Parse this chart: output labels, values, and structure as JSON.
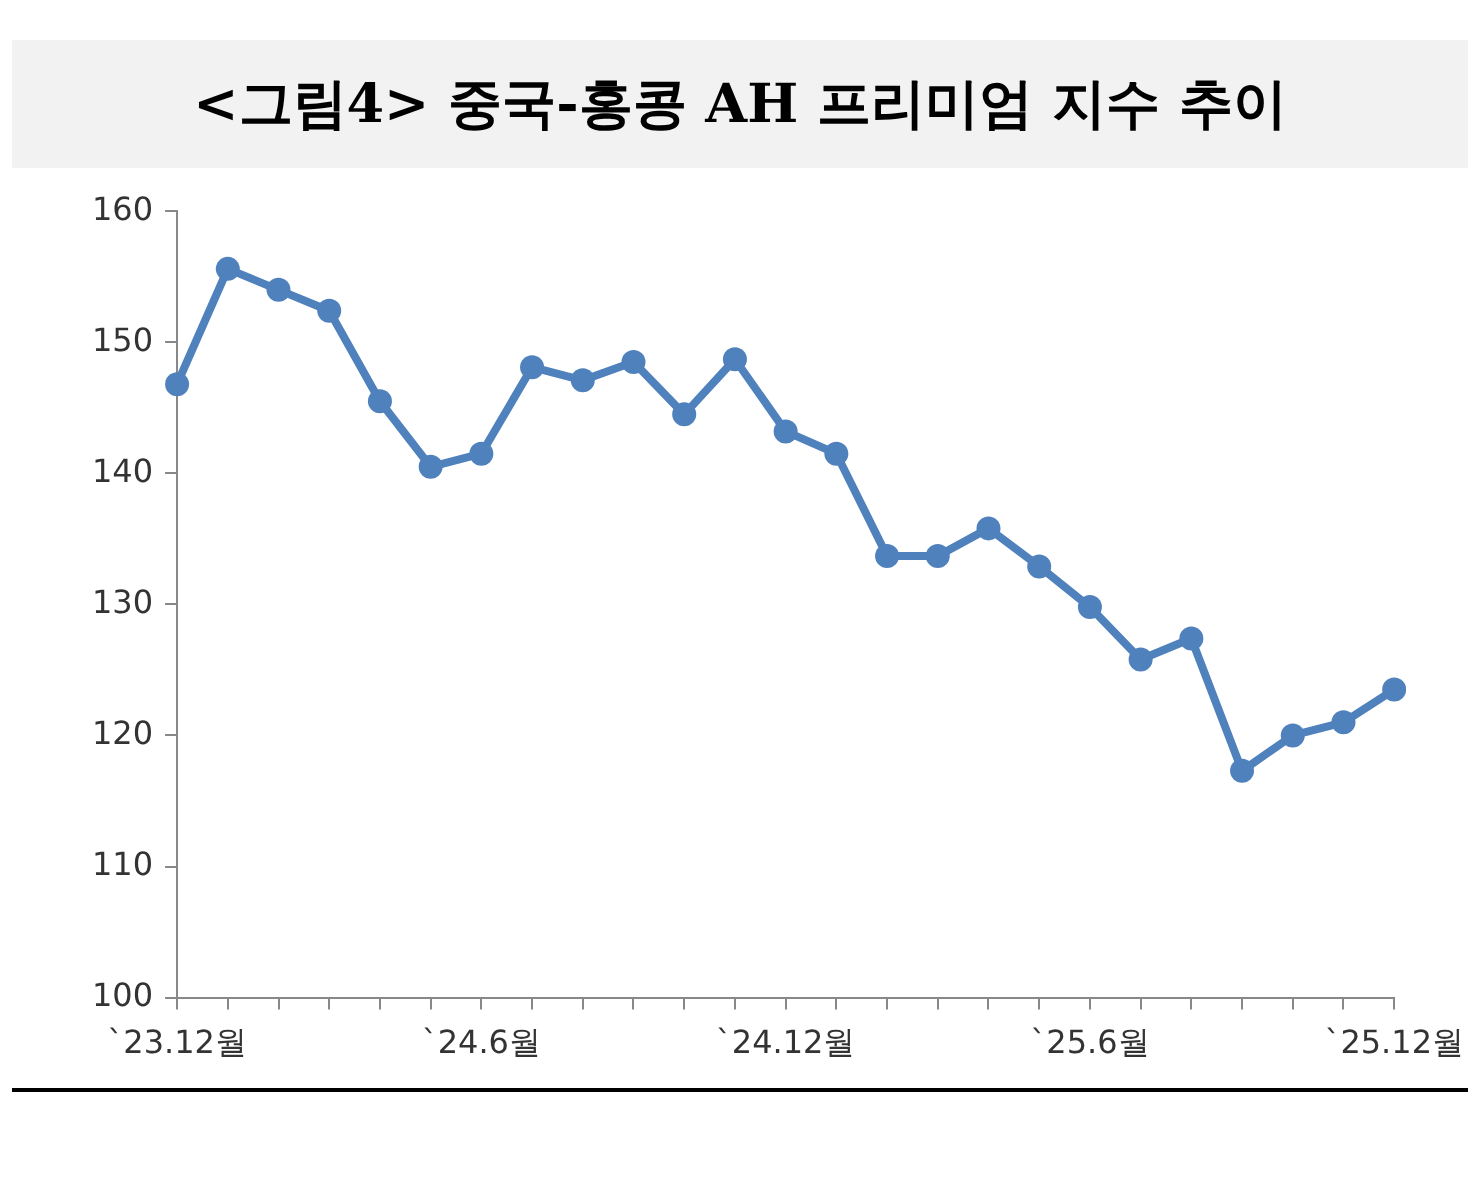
{
  "chart_data": {
    "type": "line",
    "title": "<그림4> 중국-홍콩 AH 프리미엄 지수 추이",
    "categories": [
      "`23.12월",
      null,
      null,
      null,
      null,
      null,
      "`24.6월",
      null,
      null,
      null,
      null,
      null,
      "`24.12월",
      null,
      null,
      null,
      null,
      null,
      "`25.6월",
      null,
      null,
      null,
      null,
      null,
      "`25.12월"
    ],
    "series": [
      {
        "color": "#4f81bd",
        "values": [
          146.8,
          155.6,
          154.0,
          152.4,
          145.5,
          140.5,
          141.5,
          148.1,
          147.1,
          148.5,
          144.5,
          148.7,
          143.2,
          141.5,
          133.7,
          133.7,
          135.8,
          132.9,
          129.8,
          125.8,
          127.4,
          117.3,
          120.0,
          121.0,
          123.5
        ]
      }
    ],
    "ylim": [
      100,
      160
    ],
    "yticks": [
      100,
      110,
      120,
      130,
      140,
      150,
      160
    ],
    "grid": false,
    "legend": false,
    "marker": "circle",
    "line_style": "solid"
  }
}
